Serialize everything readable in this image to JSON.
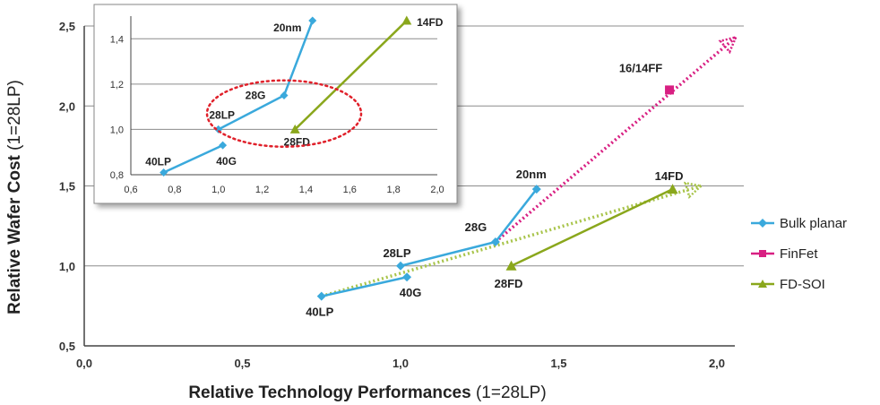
{
  "chart_data": {
    "type": "line",
    "xlabel_bold": "Relative Technology Performances",
    "xlabel_rest": " (1=28LP)",
    "ylabel_bold": "Relative Wafer Cost",
    "ylabel_rest": " (1=28LP)",
    "xlim": [
      0.0,
      2.0
    ],
    "ylim": [
      0.5,
      2.5
    ],
    "xticks": [
      "0,0",
      "0,5",
      "1,0",
      "1,5",
      "2,0"
    ],
    "yticks": [
      "0,5",
      "1,0",
      "1,5",
      "2,0",
      "2,5"
    ],
    "grid": true,
    "legend_position": "right",
    "series": [
      {
        "name": "Bulk planar",
        "color": "#3aa9dc",
        "marker": "diamond",
        "points": [
          {
            "label": "40LP",
            "x": 0.75,
            "y": 0.81
          },
          {
            "label": "40G",
            "x": 1.02,
            "y": 0.93
          },
          {
            "label": "28LP",
            "x": 1.0,
            "y": 1.0
          },
          {
            "label": "28G",
            "x": 1.3,
            "y": 1.15
          },
          {
            "label": "20nm",
            "x": 1.43,
            "y": 1.48
          }
        ]
      },
      {
        "name": "FinFet",
        "color": "#d81f82",
        "marker": "square",
        "points": [
          {
            "label": "16/14FF",
            "x": 1.85,
            "y": 2.1
          }
        ]
      },
      {
        "name": "FD-SOI",
        "color": "#8aa71c",
        "marker": "triangle",
        "points": [
          {
            "label": "28FD",
            "x": 1.35,
            "y": 1.0
          },
          {
            "label": "14FD",
            "x": 1.86,
            "y": 1.48
          }
        ]
      }
    ],
    "trend_arrows": [
      {
        "color": "#d81f82",
        "from": [
          1.3,
          1.15
        ],
        "to": [
          2.06,
          2.43
        ]
      },
      {
        "color": "#a8c44a",
        "from": [
          0.75,
          0.81
        ],
        "to": [
          1.95,
          1.5
        ]
      }
    ],
    "inset": {
      "xlim": [
        0.6,
        2.0
      ],
      "ylim": [
        0.8,
        1.5
      ],
      "xticks": [
        "0,6",
        "0,8",
        "1,0",
        "1,2",
        "1,4",
        "1,6",
        "1,8",
        "2,0"
      ],
      "yticks": [
        "0,8",
        "1,0",
        "1,2",
        "1,4"
      ],
      "highlight": "red dotted ellipse around 28LP, 28G and 28FD"
    }
  }
}
